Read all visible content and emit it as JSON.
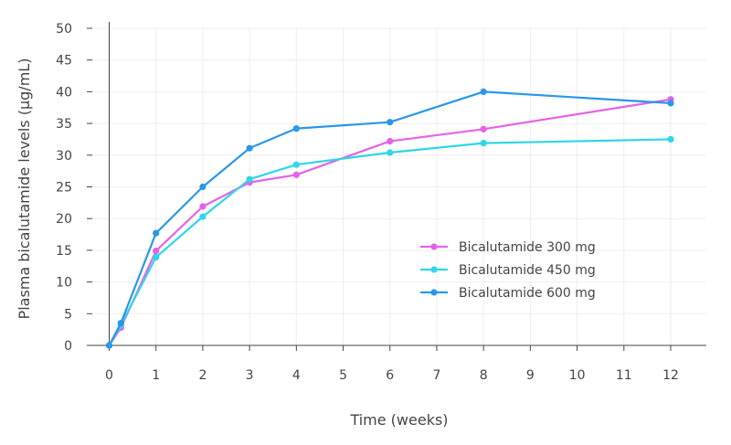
{
  "chart_data": {
    "type": "line",
    "title": "",
    "xlabel": "Time (weeks)",
    "ylabel": "Plasma bicalutamide levels (µg/mL)",
    "xlim": [
      -0.3,
      12.75
    ],
    "ylim": [
      0,
      50
    ],
    "xticks": [
      0,
      1,
      2,
      3,
      4,
      5,
      6,
      7,
      8,
      9,
      10,
      11,
      12
    ],
    "yticks": [
      0,
      5,
      10,
      15,
      20,
      25,
      30,
      35,
      40,
      45,
      50
    ],
    "grid": true,
    "legend_position": "center-right",
    "series": [
      {
        "name": "Bicalutamide 300 mg",
        "color": "#e462e8",
        "x": [
          0,
          0.25,
          1,
          2,
          3,
          4,
          6,
          8,
          12
        ],
        "y": [
          0,
          2.8,
          14.9,
          21.9,
          25.7,
          26.9,
          32.2,
          34.1,
          38.8
        ]
      },
      {
        "name": "Bicalutamide 450 mg",
        "color": "#2ed6e6",
        "x": [
          0,
          0.25,
          1,
          2,
          3,
          4,
          6,
          8,
          12
        ],
        "y": [
          0,
          3.2,
          13.9,
          20.3,
          26.2,
          28.5,
          30.4,
          31.9,
          32.5
        ]
      },
      {
        "name": "Bicalutamide 600 mg",
        "color": "#2a97e8",
        "x": [
          0,
          0.25,
          1,
          2,
          3,
          4,
          6,
          8,
          12
        ],
        "y": [
          0,
          3.5,
          17.7,
          25.0,
          31.1,
          34.2,
          35.2,
          40.0,
          38.2
        ]
      }
    ]
  }
}
